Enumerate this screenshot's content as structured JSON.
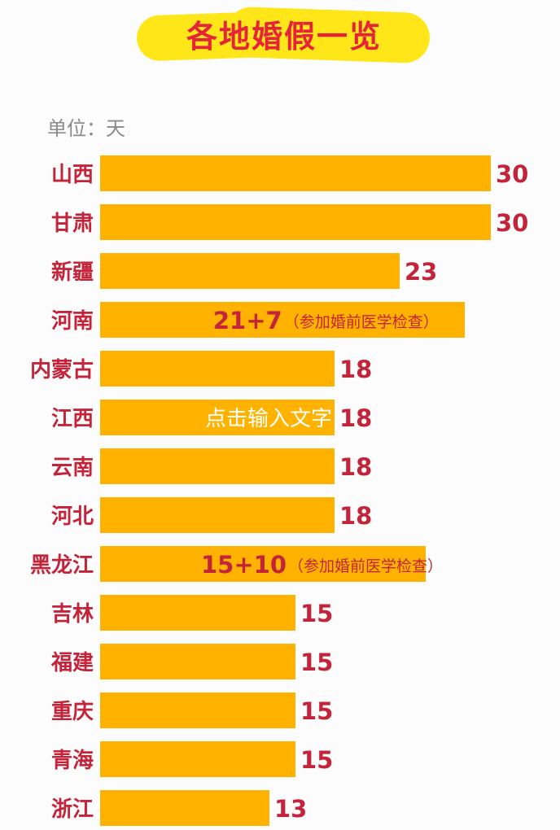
{
  "title": "各地婚假一览",
  "unit_label": "单位：天",
  "overlay_text": "点击输入文字",
  "colors": {
    "bar": "#ffb300",
    "category_text": "#c4243a",
    "value_text": "#c4243a",
    "title_text": "#e5243a",
    "title_bg": "#ffe619"
  },
  "chart_data": {
    "type": "bar",
    "orientation": "horizontal",
    "title": "各地婚假一览",
    "unit": "天",
    "categories": [
      "山西",
      "甘肃",
      "新疆",
      "河南",
      "内蒙古",
      "江西",
      "云南",
      "河北",
      "黑龙江",
      "吉林",
      "福建",
      "重庆",
      "青海",
      "浙江"
    ],
    "values": [
      30,
      30,
      23,
      28,
      18,
      18,
      18,
      18,
      25,
      15,
      15,
      15,
      15,
      13
    ],
    "labels": [
      "30",
      "30",
      "23",
      "21+7",
      "18",
      "18",
      "18",
      "18",
      "15+10",
      "15",
      "15",
      "15",
      "15",
      "13"
    ],
    "label_notes": [
      "",
      "",
      "",
      "（参加婚前医学检查）",
      "",
      "",
      "",
      "",
      "（参加婚前医学检查）",
      "",
      "",
      "",
      "",
      ""
    ],
    "label_inside": [
      false,
      false,
      false,
      true,
      false,
      false,
      false,
      false,
      true,
      false,
      false,
      false,
      false,
      false
    ],
    "xlim": [
      0,
      30
    ]
  }
}
